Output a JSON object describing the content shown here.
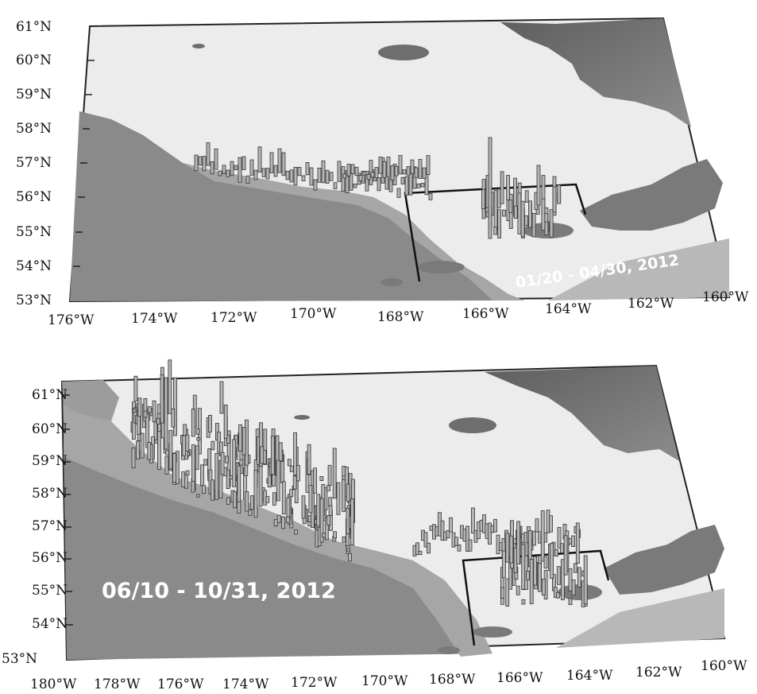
{
  "panels": [
    {
      "id": "top",
      "date_range": "01/20 - 04/30, 2012",
      "lat_labels": [
        "61°N",
        "60°N",
        "59°N",
        "58°N",
        "57°N",
        "56°N",
        "55°N",
        "54°N",
        "53°N"
      ],
      "lon_labels": [
        "176°W",
        "174°W",
        "172°W",
        "170°W",
        "168°W",
        "166°W",
        "164°W",
        "162°W",
        "160°W"
      ]
    },
    {
      "id": "bottom",
      "date_range": "06/10 - 10/31, 2012",
      "lat_labels": [
        "61°N",
        "60°N",
        "59°N",
        "58°N",
        "57°N",
        "56°N",
        "55°N",
        "54°N",
        "53°N"
      ],
      "lon_labels": [
        "180°W",
        "178°W",
        "176°W",
        "174°W",
        "172°W",
        "170°W",
        "168°W",
        "166°W",
        "164°W",
        "162°W",
        "160°W"
      ]
    }
  ],
  "colors": {
    "deep_sea": "#8a8a8a",
    "slope": "#a6a6a6",
    "shelf": "#ececec",
    "land": "#6e6e6e",
    "bars": "#b5b5b5",
    "box": "#111111"
  }
}
